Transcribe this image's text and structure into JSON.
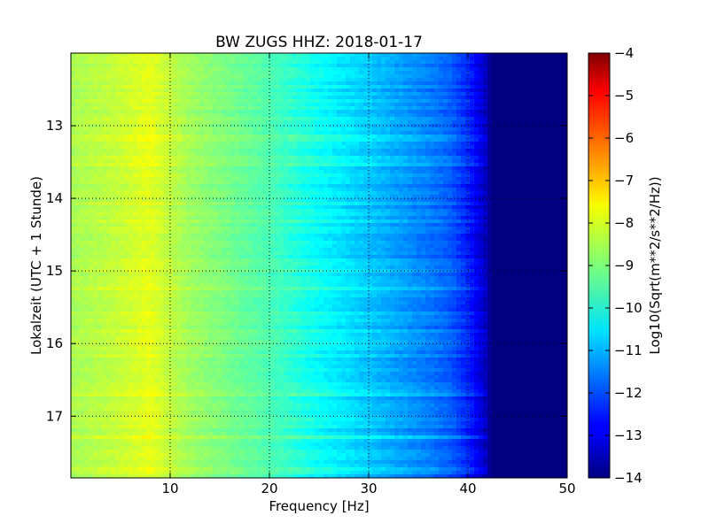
{
  "chart_data": {
    "type": "heatmap",
    "title": "BW ZUGS HHZ: 2018-01-17",
    "xlabel": "Frequency [Hz]",
    "ylabel": "Lokalzeit (UTC + 1 Stunde)",
    "xlim": [
      0,
      50
    ],
    "ylim": [
      17.85,
      12.0
    ],
    "x_ticks": [
      10,
      20,
      30,
      40,
      50
    ],
    "y_ticks": [
      13,
      14,
      15,
      16,
      17
    ],
    "grid": true,
    "colormap": "jet",
    "colorbar": {
      "label": "Log10(Sqrt(m**2/s**2/Hz))",
      "range": [
        -14,
        -4
      ],
      "ticks": [
        -4,
        -5,
        -6,
        -7,
        -8,
        -9,
        -10,
        -11,
        -12,
        -13,
        -14
      ]
    },
    "frequency_profile": {
      "frequency_hz": [
        0,
        5,
        8,
        9,
        12,
        15,
        20,
        25,
        30,
        35,
        38,
        40,
        41.5,
        42.5,
        50
      ],
      "log10_psd": [
        -8.6,
        -8.3,
        -8.0,
        -8.2,
        -8.7,
        -9.0,
        -9.5,
        -10.2,
        -10.8,
        -11.4,
        -11.8,
        -12.4,
        -13.2,
        -14.0,
        -14.0
      ]
    }
  }
}
